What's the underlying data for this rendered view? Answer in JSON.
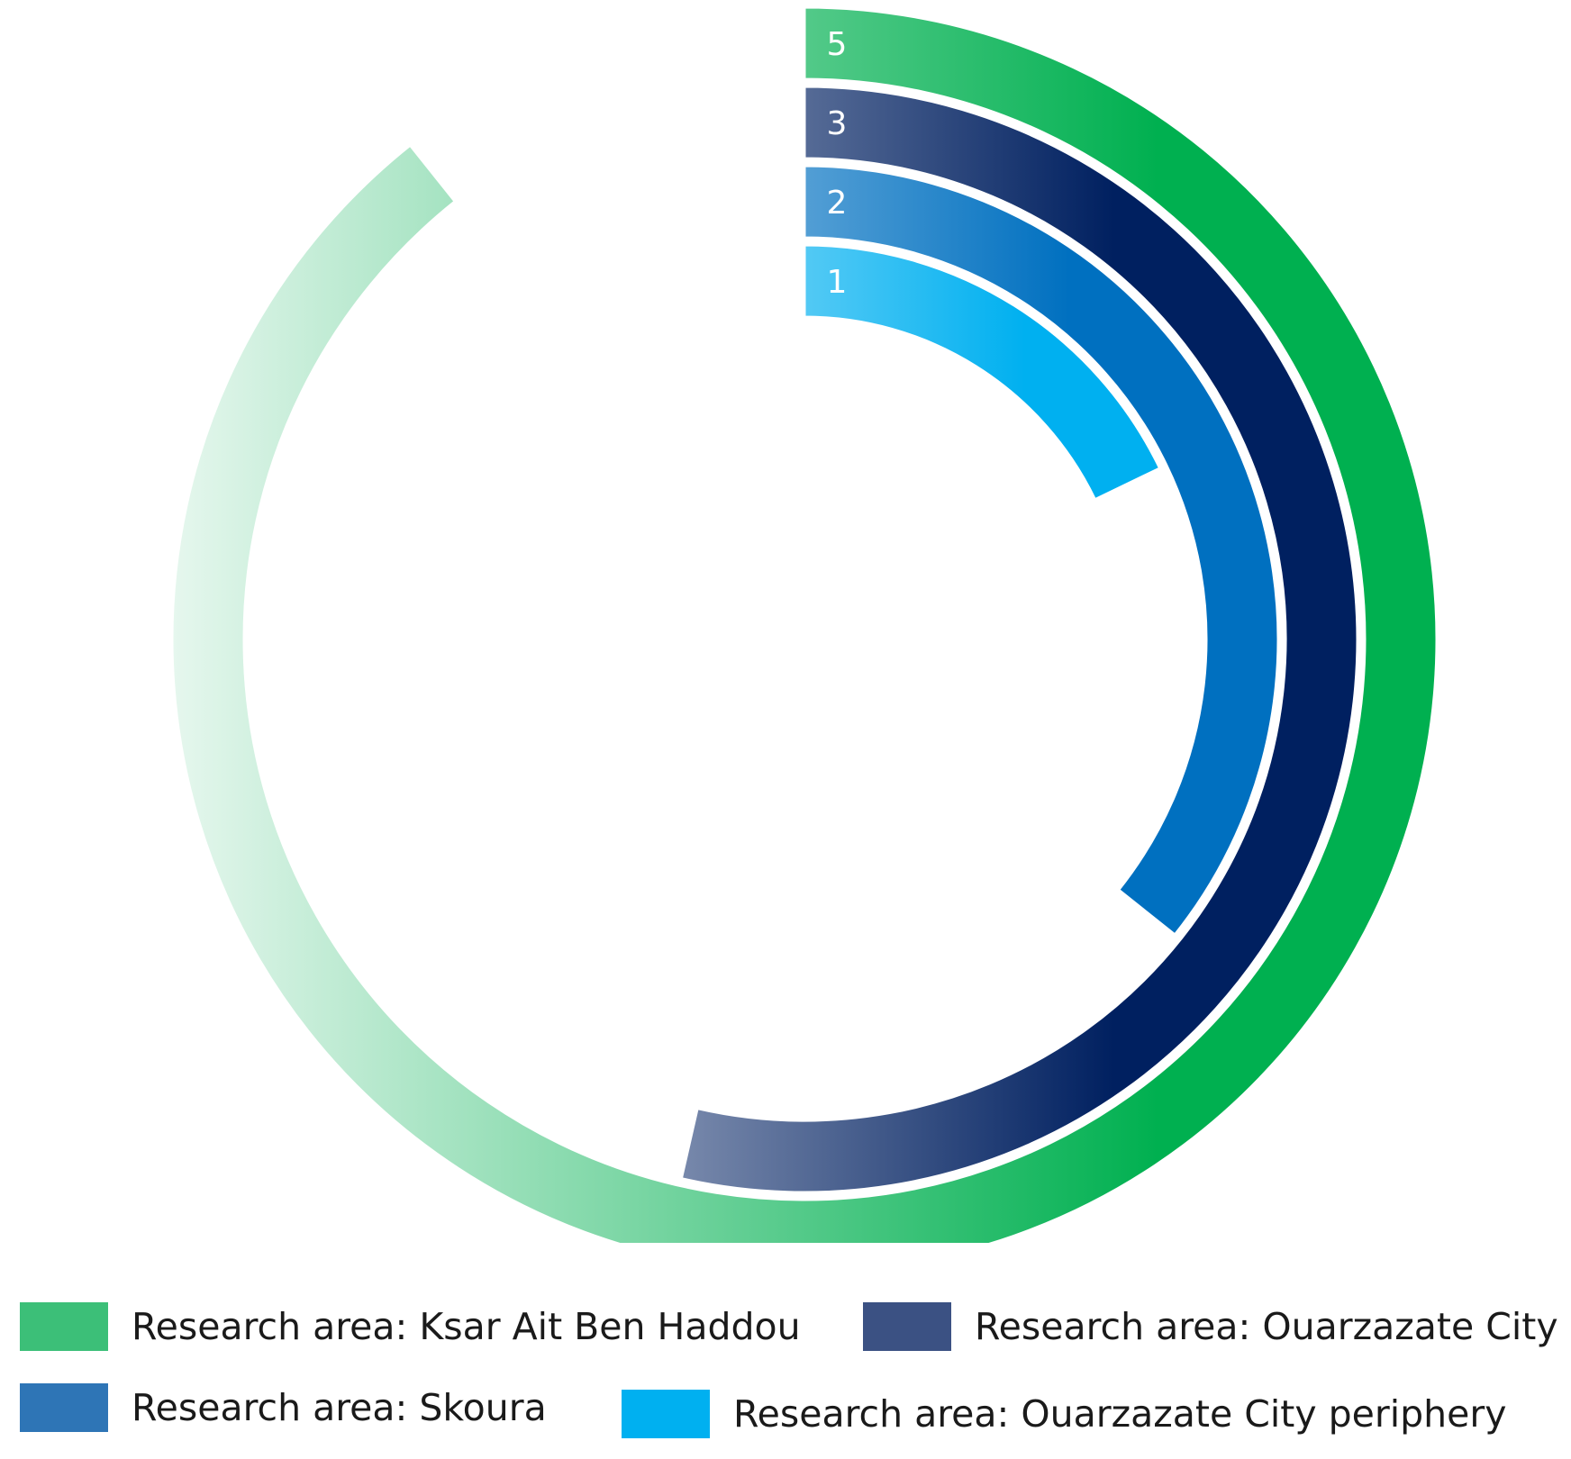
{
  "chart_data": {
    "type": "radial-bar",
    "series": [
      {
        "name": "Research area: Ksar Ait Ben Haddou",
        "value": 5,
        "label": "5",
        "color": "#00b050",
        "fade_to": "#e6f7ee"
      },
      {
        "name": "Research area: Ouarzazate City",
        "value": 3,
        "label": "3",
        "color": "#002060",
        "fade_to": "#eef0f6"
      },
      {
        "name": "Research area: Skoura",
        "value": 2,
        "label": "2",
        "color": "#0070c0",
        "fade_to": "#e6f1fa"
      },
      {
        "name": "Research area: Ouarzazate City periphery",
        "value": 1,
        "label": "1",
        "color": "#00b0f0",
        "fade_to": "#e6f7fd"
      }
    ],
    "scale_max": 5.6,
    "legend_position": "bottom"
  },
  "legend": [
    {
      "label": "Research area: Ksar Ait Ben Haddou",
      "color": "#3cbf78"
    },
    {
      "label": "Research area: Ouarzazate City",
      "color": "#3b5183"
    },
    {
      "label": "Research area: Skoura",
      "color": "#2e75b6"
    },
    {
      "label": "Research area: Ouarzazate City periphery",
      "color": "#00b0f0"
    }
  ]
}
